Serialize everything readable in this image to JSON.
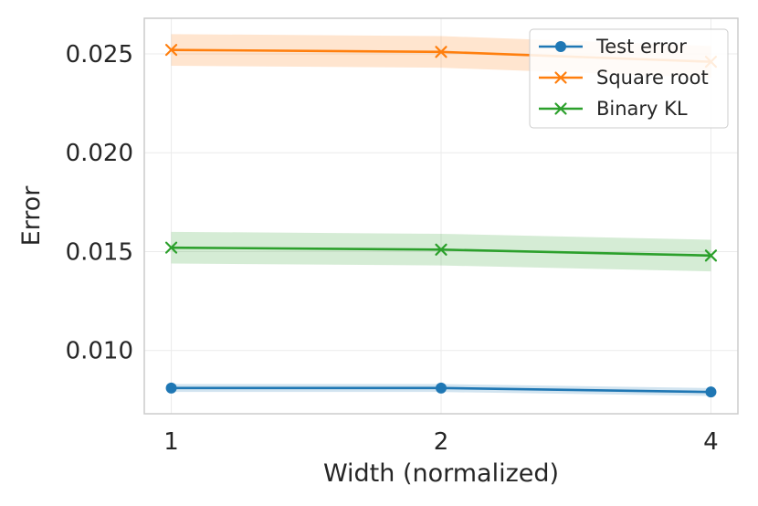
{
  "chart_data": {
    "type": "line",
    "xlabel": "Width (normalized)",
    "ylabel": "Error",
    "x": [
      1,
      2,
      4
    ],
    "x_tick_labels": [
      "1",
      "2",
      "4"
    ],
    "x_scale": "log2",
    "ylim": [
      0.0068,
      0.0268
    ],
    "y_ticks": [
      0.01,
      0.015,
      0.02,
      0.025
    ],
    "y_tick_labels": [
      "0.010",
      "0.015",
      "0.020",
      "0.025"
    ],
    "grid": true,
    "legend_position": "top-right",
    "series": [
      {
        "name": "Test error",
        "color": "#1f77b4",
        "marker": "circle",
        "values": [
          0.0081,
          0.0081,
          0.0079
        ],
        "band_lower": [
          0.0079,
          0.0079,
          0.0077
        ],
        "band_upper": [
          0.0083,
          0.0083,
          0.0081
        ]
      },
      {
        "name": "Square root",
        "color": "#ff7f0e",
        "marker": "x",
        "values": [
          0.0252,
          0.0251,
          0.0246
        ],
        "band_lower": [
          0.0244,
          0.0243,
          0.0238
        ],
        "band_upper": [
          0.026,
          0.0259,
          0.0254
        ]
      },
      {
        "name": "Binary KL",
        "color": "#2ca02c",
        "marker": "x",
        "values": [
          0.0152,
          0.0151,
          0.0148
        ],
        "band_lower": [
          0.0144,
          0.0143,
          0.014
        ],
        "band_upper": [
          0.016,
          0.0159,
          0.0156
        ]
      }
    ]
  }
}
